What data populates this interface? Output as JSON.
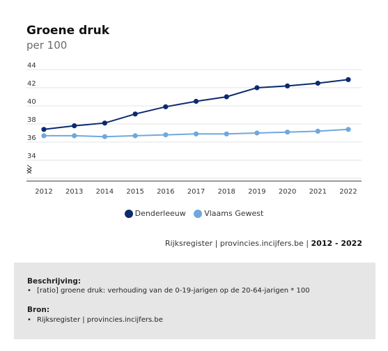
{
  "title": "Groene druk",
  "subtitle": "per 100",
  "chart_data": {
    "type": "line",
    "title": "Groene druk",
    "subtitle": "per 100",
    "x": [
      "2012",
      "2013",
      "2014",
      "2015",
      "2016",
      "2017",
      "2018",
      "2019",
      "2020",
      "2021",
      "2022"
    ],
    "series": [
      {
        "name": "Denderleeuw",
        "color": "#0b2a6f",
        "values": [
          37.4,
          37.8,
          38.1,
          39.1,
          39.9,
          40.5,
          41.0,
          42.0,
          42.2,
          42.5,
          42.9
        ]
      },
      {
        "name": "Vlaams Gewest",
        "color": "#6fa8dc",
        "values": [
          36.7,
          36.7,
          36.6,
          36.7,
          36.8,
          36.9,
          36.9,
          37.0,
          37.1,
          37.2,
          37.4
        ]
      }
    ],
    "yticks": [
      44,
      42,
      40,
      38,
      36,
      34
    ],
    "ylim": [
      32,
      44
    ],
    "axis_break": true,
    "grid": true,
    "legend_position": "bottom-center"
  },
  "source": {
    "text": "Rijksregister | provincies.incijfers.be",
    "separator": " | ",
    "period": "2012 - 2022"
  },
  "info": {
    "description_heading": "Beschrijving:",
    "description_item": "[ratio] groene druk: verhouding van de 0-19-jarigen op de 20-64-jarigen * 100",
    "source_heading": "Bron:",
    "source_item": "Rijksregister | provincies.incijfers.be"
  }
}
